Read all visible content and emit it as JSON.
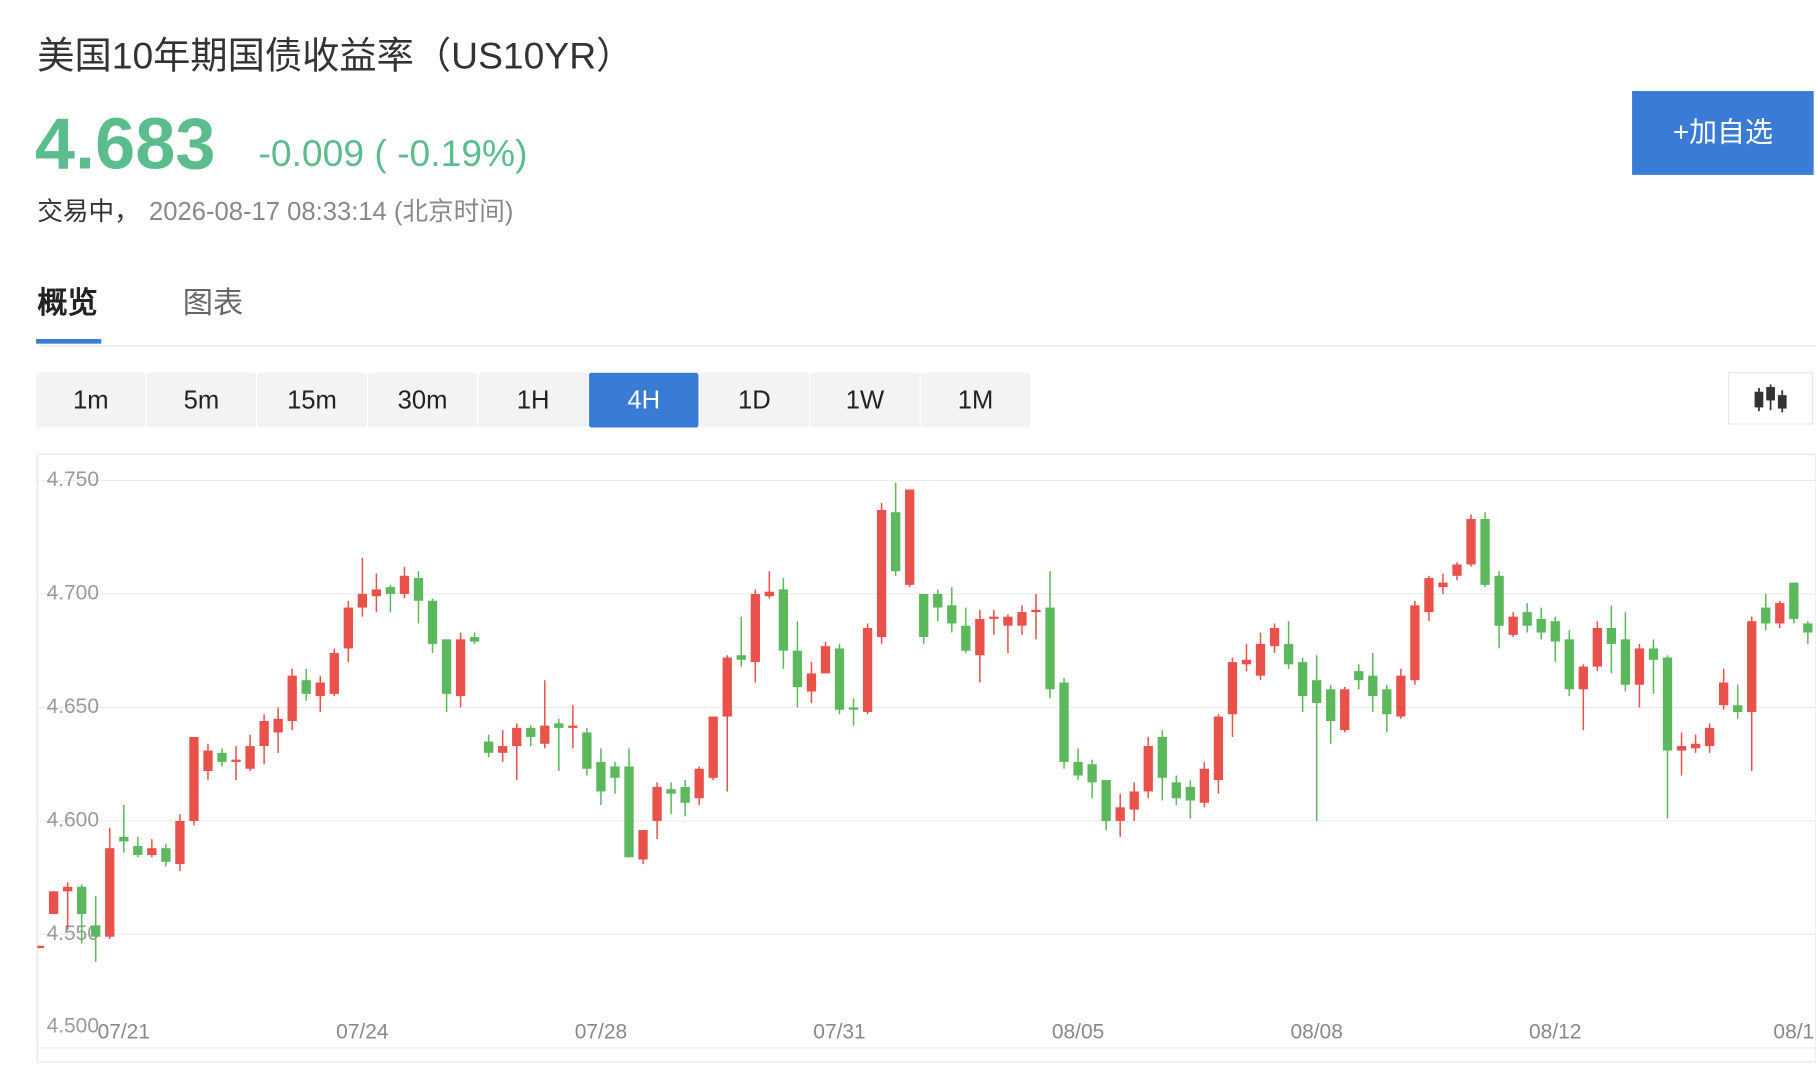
{
  "header": {
    "title": "美国10年期国债收益率（US10YR）",
    "price": "4.683",
    "change": "-0.009 ( -0.19%)",
    "status": "交易中，",
    "time": "2026-08-17 08:33:14 (北京时间)",
    "button": "+加自选"
  },
  "tabs": {
    "items": [
      "概览",
      "图表"
    ],
    "selected": "概览"
  },
  "intervals": {
    "items": [
      "1m",
      "5m",
      "15m",
      "30m",
      "1H",
      "4H",
      "1D",
      "1W",
      "1M"
    ],
    "selected": "4H"
  },
  "chart_data": {
    "type": "candlestick",
    "up_color": "#e9514b",
    "down_color": "#5cb85c",
    "grid": true,
    "ylim": [
      4.5,
      4.76
    ],
    "yticks": [
      {
        "value": 4.5,
        "label": "4.500"
      },
      {
        "value": 4.55,
        "label": "4.550"
      },
      {
        "value": 4.6,
        "label": "4.600"
      },
      {
        "value": 4.65,
        "label": "4.650"
      },
      {
        "value": 4.7,
        "label": "4.700"
      },
      {
        "value": 4.75,
        "label": "4.750"
      }
    ],
    "xticks": [
      {
        "value": 6,
        "label": "07/21"
      },
      {
        "value": 23,
        "label": "07/24"
      },
      {
        "value": 40,
        "label": "07/28"
      },
      {
        "value": 57,
        "label": "07/31"
      },
      {
        "value": 74,
        "label": "08/05"
      },
      {
        "value": 91,
        "label": "08/08"
      },
      {
        "value": 108,
        "label": "08/12"
      },
      {
        "value": 125,
        "label": "08/1"
      }
    ],
    "open": [
      4.544,
      4.559,
      4.569,
      4.571,
      4.554,
      4.549,
      4.593,
      4.589,
      4.585,
      4.588,
      4.581,
      4.6,
      4.622,
      4.63,
      4.626,
      4.623,
      4.633,
      4.639,
      4.644,
      4.662,
      4.655,
      4.656,
      4.676,
      4.694,
      4.699,
      4.703,
      4.7,
      4.707,
      4.697,
      4.68,
      4.655,
      4.681,
      4.635,
      4.63,
      4.633,
      4.641,
      4.634,
      4.643,
      4.641,
      4.639,
      4.626,
      4.624,
      4.624,
      4.583,
      4.6,
      4.614,
      4.615,
      4.61,
      4.619,
      4.646,
      4.673,
      4.67,
      4.699,
      4.702,
      4.675,
      4.657,
      4.665,
      4.676,
      4.65,
      4.648,
      4.681,
      4.736,
      4.704,
      4.7,
      4.7,
      4.695,
      4.686,
      4.673,
      4.689,
      4.686,
      4.686,
      4.692,
      4.694,
      4.661,
      4.626,
      4.625,
      4.618,
      4.6,
      4.605,
      4.613,
      4.637,
      4.617,
      4.615,
      4.608,
      4.618,
      4.647,
      4.669,
      4.664,
      4.677,
      4.678,
      4.67,
      4.662,
      4.658,
      4.64,
      4.666,
      4.664,
      4.658,
      4.646,
      4.662,
      4.692,
      4.703,
      4.708,
      4.713,
      4.733,
      4.708,
      4.682,
      4.692,
      4.689,
      4.688,
      4.68,
      4.658,
      4.668,
      4.685,
      4.68,
      4.66,
      4.676,
      4.672,
      4.631,
      4.632,
      4.633,
      4.651,
      4.651,
      4.648,
      4.694,
      4.687,
      4.705,
      4.687
    ],
    "high": [
      4.545,
      4.569,
      4.573,
      4.572,
      4.567,
      4.597,
      4.607,
      4.593,
      4.592,
      4.59,
      4.603,
      4.637,
      4.634,
      4.632,
      4.633,
      4.638,
      4.647,
      4.65,
      4.667,
      4.667,
      4.664,
      4.676,
      4.697,
      4.716,
      4.709,
      4.704,
      4.712,
      4.71,
      4.698,
      4.68,
      4.683,
      4.683,
      4.638,
      4.64,
      4.643,
      4.642,
      4.662,
      4.645,
      4.651,
      4.641,
      4.632,
      4.626,
      4.632,
      4.596,
      4.617,
      4.617,
      4.618,
      4.624,
      4.646,
      4.673,
      4.69,
      4.702,
      4.71,
      4.707,
      4.688,
      4.67,
      4.679,
      4.678,
      4.654,
      4.687,
      4.74,
      4.749,
      4.746,
      4.7,
      4.702,
      4.703,
      4.694,
      4.693,
      4.693,
      4.691,
      4.695,
      4.7,
      4.71,
      4.663,
      4.632,
      4.627,
      4.618,
      4.612,
      4.617,
      4.637,
      4.64,
      4.62,
      4.618,
      4.626,
      4.647,
      4.672,
      4.678,
      4.683,
      4.687,
      4.688,
      4.672,
      4.673,
      4.66,
      4.659,
      4.669,
      4.674,
      4.66,
      4.667,
      4.697,
      4.708,
      4.709,
      4.714,
      4.735,
      4.736,
      4.71,
      4.692,
      4.696,
      4.694,
      4.69,
      4.684,
      4.669,
      4.688,
      4.695,
      4.692,
      4.678,
      4.68,
      4.673,
      4.639,
      4.638,
      4.643,
      4.667,
      4.66,
      4.69,
      4.7,
      4.697,
      4.705,
      4.688
    ],
    "low": [
      4.544,
      4.559,
      4.552,
      4.546,
      4.538,
      4.548,
      4.586,
      4.584,
      4.584,
      4.58,
      4.578,
      4.598,
      4.618,
      4.624,
      4.618,
      4.622,
      4.625,
      4.63,
      4.64,
      4.653,
      4.648,
      4.655,
      4.67,
      4.69,
      4.692,
      4.692,
      4.698,
      4.687,
      4.674,
      4.648,
      4.65,
      4.678,
      4.628,
      4.626,
      4.618,
      4.633,
      4.632,
      4.622,
      4.632,
      4.62,
      4.607,
      4.612,
      4.584,
      4.581,
      4.592,
      4.603,
      4.602,
      4.607,
      4.618,
      4.613,
      4.668,
      4.661,
      4.698,
      4.667,
      4.65,
      4.652,
      4.665,
      4.647,
      4.642,
      4.647,
      4.678,
      4.708,
      4.703,
      4.678,
      4.688,
      4.683,
      4.674,
      4.661,
      4.682,
      4.674,
      4.682,
      4.68,
      4.654,
      4.623,
      4.618,
      4.61,
      4.596,
      4.593,
      4.6,
      4.61,
      4.609,
      4.607,
      4.601,
      4.606,
      4.612,
      4.637,
      4.666,
      4.662,
      4.674,
      4.667,
      4.648,
      4.6,
      4.634,
      4.639,
      4.658,
      4.648,
      4.639,
      4.645,
      4.66,
      4.688,
      4.7,
      4.706,
      4.712,
      4.703,
      4.676,
      4.681,
      4.683,
      4.68,
      4.67,
      4.655,
      4.64,
      4.666,
      4.665,
      4.657,
      4.65,
      4.656,
      4.601,
      4.62,
      4.63,
      4.63,
      4.649,
      4.645,
      4.622,
      4.684,
      4.685,
      4.687,
      4.678
    ],
    "close": [
      4.545,
      4.569,
      4.571,
      4.559,
      4.549,
      4.588,
      4.591,
      4.585,
      4.588,
      4.582,
      4.6,
      4.637,
      4.631,
      4.626,
      4.627,
      4.633,
      4.644,
      4.645,
      4.664,
      4.656,
      4.661,
      4.674,
      4.694,
      4.7,
      4.702,
      4.7,
      4.708,
      4.697,
      4.678,
      4.656,
      4.68,
      4.679,
      4.63,
      4.633,
      4.641,
      4.637,
      4.642,
      4.641,
      4.642,
      4.623,
      4.613,
      4.619,
      4.584,
      4.596,
      4.615,
      4.612,
      4.608,
      4.623,
      4.646,
      4.672,
      4.671,
      4.7,
      4.701,
      4.675,
      4.659,
      4.665,
      4.677,
      4.649,
      4.649,
      4.685,
      4.737,
      4.71,
      4.746,
      4.681,
      4.694,
      4.687,
      4.675,
      4.689,
      4.69,
      4.69,
      4.692,
      4.693,
      4.658,
      4.626,
      4.62,
      4.617,
      4.6,
      4.606,
      4.613,
      4.633,
      4.619,
      4.61,
      4.609,
      4.623,
      4.646,
      4.67,
      4.671,
      4.678,
      4.685,
      4.669,
      4.655,
      4.652,
      4.644,
      4.658,
      4.662,
      4.655,
      4.647,
      4.664,
      4.695,
      4.707,
      4.705,
      4.713,
      4.733,
      4.704,
      4.686,
      4.69,
      4.686,
      4.683,
      4.679,
      4.658,
      4.668,
      4.685,
      4.678,
      4.66,
      4.676,
      4.671,
      4.631,
      4.633,
      4.634,
      4.641,
      4.661,
      4.648,
      4.688,
      4.687,
      4.696,
      4.689,
      4.683
    ]
  }
}
